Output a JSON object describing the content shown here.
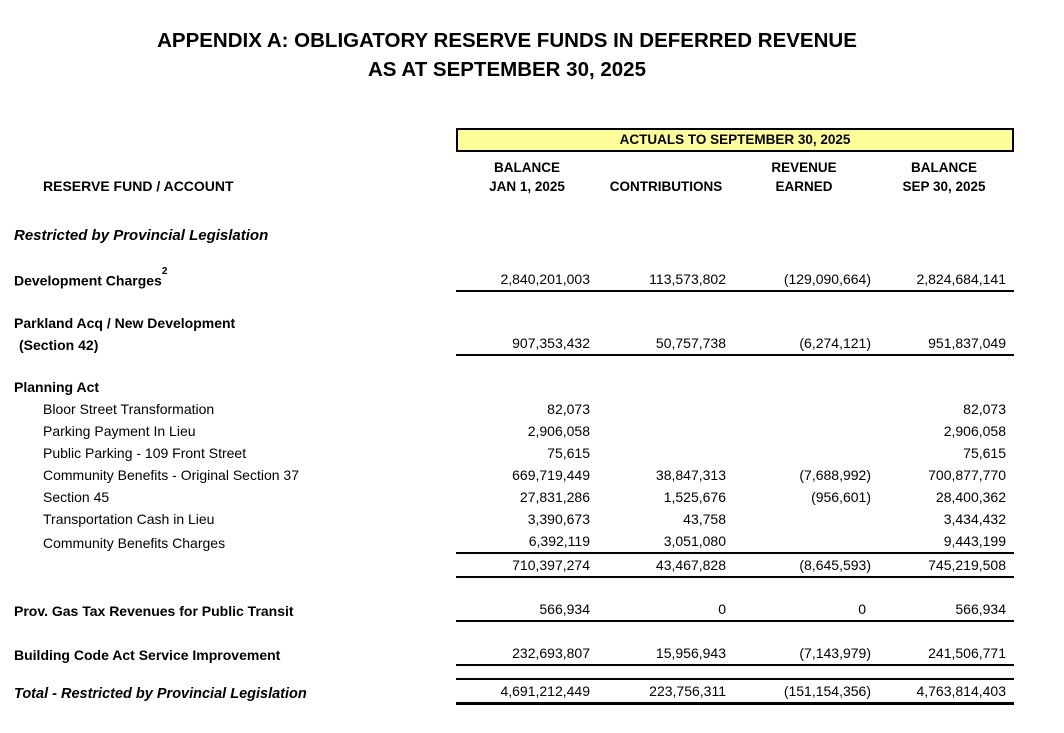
{
  "title": {
    "line1": "APPENDIX A: OBLIGATORY RESERVE FUNDS IN DEFERRED REVENUE",
    "line2": "AS AT SEPTEMBER 30, 2025"
  },
  "colors": {
    "banner_bg": "#FFFF99",
    "banner_border": "#000000",
    "text": "#000000"
  },
  "table": {
    "banner": "ACTUALS TO SEPTEMBER 30, 2025",
    "row_header_label": "RESERVE FUND / ACCOUNT",
    "columns": [
      {
        "line1": "BALANCE",
        "line2": "JAN 1, 2025"
      },
      {
        "line1": "",
        "line2": "CONTRIBUTIONS"
      },
      {
        "line1": "REVENUE",
        "line2": "EARNED"
      },
      {
        "line1": "BALANCE",
        "line2": "SEP 30, 2025"
      }
    ],
    "rows": [
      {
        "style": "section",
        "label": "Restricted by Provincial Legislation",
        "values": null,
        "rule": "none"
      },
      {
        "style": "category",
        "label": "Development Charges",
        "sup": "2",
        "values": [
          "2,840,201,003",
          "113,573,802",
          "(129,090,664)",
          "2,824,684,141"
        ],
        "rule": "line"
      },
      {
        "style": "category",
        "label": "Parkland Acq / New Development",
        "label2": "(Section 42)",
        "values": [
          "907,353,432",
          "50,757,738",
          "(6,274,121)",
          "951,837,049"
        ],
        "rule": "line"
      },
      {
        "style": "category",
        "label": "Planning Act",
        "values": null,
        "rule": "none"
      },
      {
        "style": "item",
        "label": "Bloor Street Transformation",
        "values": [
          "82,073",
          "",
          "",
          "82,073"
        ],
        "rule": "none"
      },
      {
        "style": "item",
        "label": "Parking Payment In Lieu",
        "values": [
          "2,906,058",
          "",
          "",
          "2,906,058"
        ],
        "rule": "none"
      },
      {
        "style": "item",
        "label": "Public Parking - 109 Front Street",
        "values": [
          "75,615",
          "",
          "",
          "75,615"
        ],
        "rule": "none"
      },
      {
        "style": "item",
        "label": "Community Benefits - Original Section 37",
        "values": [
          "669,719,449",
          "38,847,313",
          "(7,688,992)",
          "700,877,770"
        ],
        "rule": "none"
      },
      {
        "style": "item",
        "label": "Section 45",
        "values": [
          "27,831,286",
          "1,525,676",
          "(956,601)",
          "28,400,362"
        ],
        "rule": "none"
      },
      {
        "style": "item",
        "label": "Transportation Cash in Lieu",
        "values": [
          "3,390,673",
          "43,758",
          "",
          "3,434,432"
        ],
        "rule": "none"
      },
      {
        "style": "item",
        "label": "Community Benefits Charges",
        "values": [
          "6,392,119",
          "3,051,080",
          "",
          "9,443,199"
        ],
        "rule": "line"
      },
      {
        "style": "group-total",
        "label": "",
        "values": [
          "710,397,274",
          "43,467,828",
          "(8,645,593)",
          "745,219,508"
        ],
        "rule": "line"
      },
      {
        "style": "category",
        "label": "Prov. Gas Tax Revenues for Public Transit",
        "values": [
          "566,934",
          "0",
          "0",
          "566,934"
        ],
        "rule": "line"
      },
      {
        "style": "category",
        "label": "Building Code Act Service Improvement",
        "values": [
          "232,693,807",
          "15,956,943",
          "(7,143,979)",
          "241,506,771"
        ],
        "rule": "line"
      },
      {
        "style": "grand-total",
        "label": "Total - Restricted by Provincial Legislation",
        "values": [
          "4,691,212,449",
          "223,756,311",
          "(151,154,356)",
          "4,763,814,403"
        ],
        "rule": "double"
      }
    ]
  }
}
